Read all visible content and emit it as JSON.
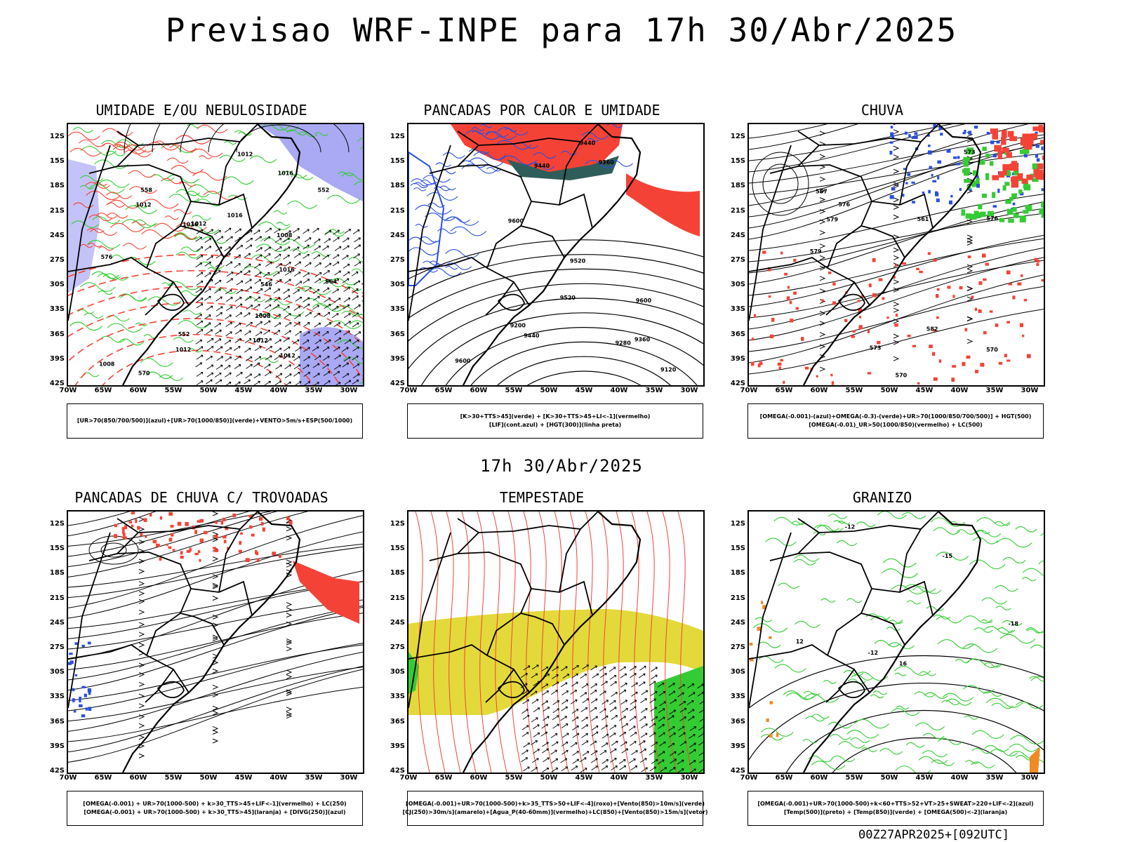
{
  "title": "Previsao WRF-INPE  para 17h 30/Abr/2025",
  "mid_title": "17h 30/Abr/2025",
  "footer": "00Z27APR2025+[092UTC]",
  "lat_labels": [
    "12S",
    "15S",
    "18S",
    "21S",
    "24S",
    "27S",
    "30S",
    "33S",
    "36S",
    "39S",
    "42S"
  ],
  "lon_labels": [
    "70W",
    "65W",
    "60W",
    "55W",
    "50W",
    "45W",
    "40W",
    "35W",
    "30W"
  ],
  "colors": {
    "red": "#f44336",
    "green": "#33cc33",
    "blue": "#2a4fe0",
    "lavender": "#a9a9f4",
    "yellow": "#e3d93a",
    "darkteal": "#2f5d5a",
    "orange": "#f08a24"
  },
  "panels": [
    {
      "id": "umidade",
      "title": "UMIDADE E/OU NEBULOSIDADE",
      "legend": [
        "[UR>70(850/700/500)](azul)+[UR>70(1000/850)](verde)+VENTO>5m/s+ESP(500/1000)"
      ],
      "contour_labels": [
        "1008",
        "1008",
        "1008",
        "1012",
        "1012",
        "1012",
        "1012",
        "1016",
        "1016",
        "1016",
        "1016",
        "1012",
        "1012",
        "576",
        "570",
        "564",
        "558",
        "552",
        "546",
        "552"
      ]
    },
    {
      "id": "pancadas-calor",
      "title": "PANCADAS POR CALOR E UMIDADE",
      "legend": [
        "[K>30+TTS>45](verde)  +  [K>30+TTS>45+LI<-1](vermelho)",
        "[LIF](cont.azul)  +  [HGT(300)](linha preta)"
      ],
      "contour_labels": [
        "9600",
        "9600",
        "9520",
        "9520",
        "9440",
        "9440",
        "9360",
        "9360",
        "9280",
        "9200",
        "9120",
        "9600",
        "9440"
      ]
    },
    {
      "id": "chuva",
      "title": "CHUVA",
      "legend": [
        "[OMEGA(-0.001)-(azul)+OMEGA(-0.3)-(verde)+UR>70(1000/850/700/500)]  +  HGT(500)",
        "[OMEGA(-0.01)_UR>50(1000/850)(vermelho)  +  LC(500)"
      ],
      "contour_labels": [
        "582",
        "579",
        "576",
        "573",
        "570",
        "567",
        "576",
        "573",
        "570",
        "561",
        "579"
      ]
    },
    {
      "id": "pancadas-trovoadas",
      "title": "PANCADAS DE CHUVA C/ TROVOADAS",
      "legend": [
        "[OMEGA(-0.001)  +  UR>70(1000-500)  +  k>30_TTS>45+LIF<-1](vermelho)  +  LC(250)",
        "[OMEGA(-0.001)  +  UR>70(1000-500)  +  k>30_TTS>45](laranja)  +  [DIVG(250)](azul)"
      ],
      "contour_labels": []
    },
    {
      "id": "tempestade",
      "title": "TEMPESTADE",
      "legend": [
        "[OMEGA(-0.001)+UR>70(1000-500)+k>35_TTS>50+LIF<-4](roxo)+[Vento(850)>10m/s](verde)",
        "[CJ(250)>30m/s](amarelo)+[Agua_P(40-60mm)](vermelho)+LC(850)+[Vento(850)>15m/s](vetor)"
      ],
      "contour_labels": []
    },
    {
      "id": "granizo",
      "title": "GRANIZO",
      "legend": [
        "[OMEGA(-0.001)+UR>70(1000-500)+k<60+TTS>52+VT>25+SWEAT>220+LIF<-2](azul)",
        "[Temp(500)](preto)  +  [Temp(850)](verde)  +  [OMEGA(500)<-2](laranja)"
      ],
      "contour_labels": [
        "-12",
        "-15",
        "-18",
        "-12",
        "16",
        "12"
      ]
    }
  ]
}
